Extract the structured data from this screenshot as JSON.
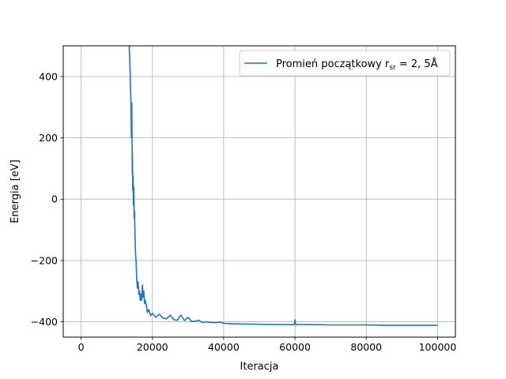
{
  "chart_data": {
    "type": "line",
    "title": "",
    "xlabel": "Iteracja",
    "ylabel": "Energia [eV]",
    "xlim": [
      -5000,
      105000
    ],
    "ylim": [
      -450,
      500
    ],
    "xticks": [
      0,
      20000,
      40000,
      60000,
      80000,
      100000
    ],
    "yticks": [
      -400,
      -200,
      0,
      200,
      400
    ],
    "xtick_labels": [
      "0",
      "20000",
      "40000",
      "60000",
      "80000",
      "100000"
    ],
    "ytick_labels": [
      "−400",
      "−200",
      "0",
      "200",
      "400"
    ],
    "grid": true,
    "legend_position": "top-right",
    "legend": {
      "text": "Promień początkowy r",
      "subscript": "sr",
      "suffix": " = 2, 5Å"
    },
    "series": [
      {
        "name": "Promień początkowy r_sr = 2, 5Å",
        "color": "#1f77b4",
        "x": [
          13500,
          13800,
          14000,
          14100,
          14200,
          14300,
          14350,
          14400,
          14500,
          14600,
          14700,
          14800,
          14900,
          15000,
          15100,
          15200,
          15300,
          15400,
          15500,
          15600,
          15800,
          16000,
          16200,
          16400,
          16600,
          16800,
          17000,
          17200,
          17400,
          17600,
          17800,
          18000,
          18300,
          18600,
          19000,
          19500,
          20000,
          21000,
          22000,
          23000,
          24000,
          25000,
          26000,
          27000,
          28000,
          29000,
          30000,
          31000,
          32000,
          33000,
          34000,
          35000,
          37000,
          39000,
          40000,
          42000,
          45000,
          50000,
          55000,
          59800,
          60000,
          60200,
          61000,
          65000,
          70000,
          75000,
          80000,
          85000,
          90000,
          95000,
          100000
        ],
        "y": [
          500,
          400,
          300,
          200,
          315,
          195,
          80,
          150,
          30,
          75,
          -20,
          40,
          -60,
          -40,
          -100,
          -150,
          -180,
          -200,
          -220,
          -260,
          -290,
          -270,
          -310,
          -300,
          -330,
          -310,
          -330,
          -280,
          -320,
          -300,
          -340,
          -330,
          -345,
          -370,
          -360,
          -380,
          -372,
          -385,
          -375,
          -388,
          -390,
          -378,
          -393,
          -395,
          -378,
          -396,
          -385,
          -399,
          -398,
          -395,
          -402,
          -400,
          -403,
          -401,
          -405,
          -406,
          -407,
          -408,
          -409,
          -409,
          -393,
          -409,
          -409,
          -409,
          -410,
          -410,
          -410,
          -411,
          -411,
          -411,
          -411
        ]
      }
    ]
  }
}
